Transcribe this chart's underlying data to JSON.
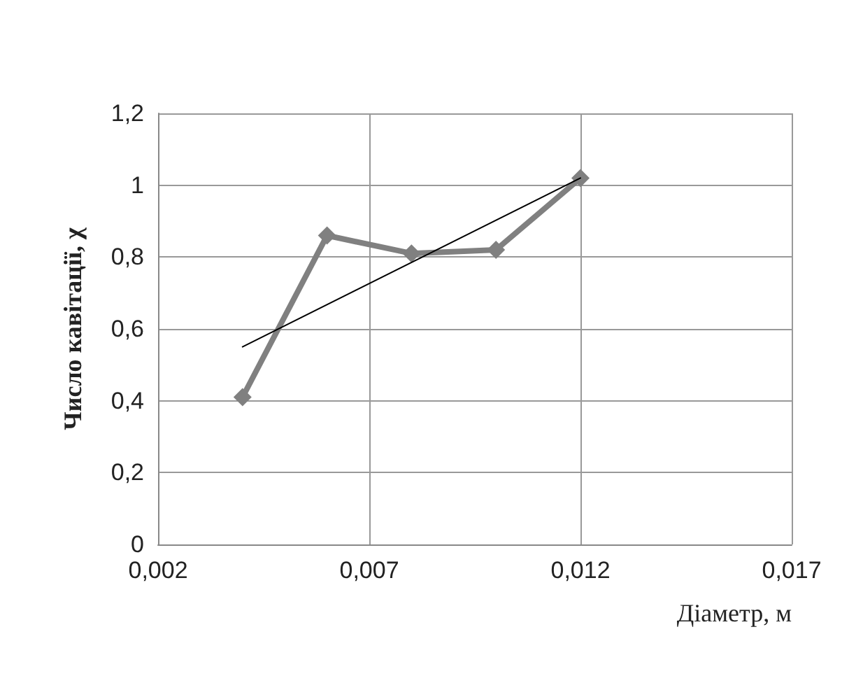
{
  "chart_data": {
    "type": "line",
    "xlabel": "Діаметр, м",
    "ylabel": "Число кавітації, χ",
    "xlim": [
      0.002,
      0.017
    ],
    "xticks": [
      {
        "value": 0.002,
        "label": "0,002"
      },
      {
        "value": 0.007,
        "label": "0,007"
      },
      {
        "value": 0.012,
        "label": "0,012"
      },
      {
        "value": 0.017,
        "label": "0,017"
      }
    ],
    "ylim": [
      0,
      1.2
    ],
    "yticks": [
      {
        "value": 0,
        "label": "0"
      },
      {
        "value": 0.2,
        "label": "0,2"
      },
      {
        "value": 0.4,
        "label": "0,4"
      },
      {
        "value": 0.6,
        "label": "0,6"
      },
      {
        "value": 0.8,
        "label": "0,8"
      },
      {
        "value": 1,
        "label": "1"
      },
      {
        "value": 1.2,
        "label": "1,2"
      }
    ],
    "grid": true,
    "series": [
      {
        "color": "#808080",
        "marker": "diamond",
        "x": [
          0.004,
          0.006,
          0.008,
          0.01,
          0.012
        ],
        "values": [
          0.41,
          0.86,
          0.81,
          0.82,
          1.02
        ]
      },
      {
        "color": "#000000",
        "marker": "none",
        "x": [
          0.004,
          0.012
        ],
        "values": [
          0.55,
          1.02
        ]
      }
    ]
  }
}
